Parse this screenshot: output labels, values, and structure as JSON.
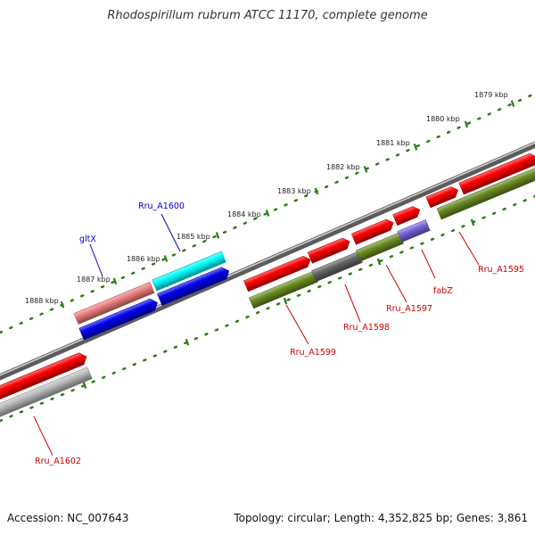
{
  "title": "Rhodospirillum rubrum ATCC 11170, complete genome",
  "footer": {
    "accession": "Accession: NC_007643",
    "summary": "Topology: circular; Length: 4,352,825 bp; Genes: 3,861"
  },
  "colors": {
    "background": "#ffffff",
    "backbone": "#7a7a7a",
    "tick": "#2a7d12",
    "label_red": "#cc0000",
    "label_blue": "#0000cc",
    "label_black": "#222222"
  },
  "scale_labels": [
    "1879 kbp",
    "1880 kbp",
    "1881 kbp",
    "1882 kbp",
    "1883 kbp",
    "1884 kbp",
    "1885 kbp",
    "1886 kbp",
    "1887 kbp",
    "1888 kbp"
  ],
  "features": [
    {
      "name": "red-forward-1",
      "color": "#ff0000"
    },
    {
      "name": "red-forward-2",
      "color": "#ff0000"
    },
    {
      "name": "red-forward-3",
      "color": "#ff0000"
    },
    {
      "name": "red-forward-4",
      "color": "#ff0000"
    },
    {
      "name": "red-forward-5",
      "color": "#ff0000"
    },
    {
      "name": "red-forward-6",
      "color": "#ff0000"
    },
    {
      "name": "red-forward-7",
      "color": "#ff0000"
    },
    {
      "name": "green-Rru_A1599",
      "color": "#6b8e23"
    },
    {
      "name": "gray-Rru_A1598",
      "color": "#666666"
    },
    {
      "name": "green-Rru_A1597",
      "color": "#6b8e23"
    },
    {
      "name": "purple-fabZ",
      "color": "#7766dd"
    },
    {
      "name": "green-Rru_A1595",
      "color": "#6b8e23"
    },
    {
      "name": "pink-gltX",
      "color": "#ee8080"
    },
    {
      "name": "cyan-Rru_A1600",
      "color": "#00ffff"
    },
    {
      "name": "blue-strand-1",
      "color": "#0000ee"
    },
    {
      "name": "blue-strand-2",
      "color": "#0000ee"
    },
    {
      "name": "red-Rru_A1602-pair",
      "color": "#ff0000"
    },
    {
      "name": "silver-Rru_A1602",
      "color": "#bbbbbb"
    }
  ],
  "labels": [
    {
      "name": "Rru_A1595",
      "text": "Rru_A1595",
      "color": "#cc0000"
    },
    {
      "name": "fabZ",
      "text": "fabZ",
      "color": "#cc0000"
    },
    {
      "name": "Rru_A1597",
      "text": "Rru_A1597",
      "color": "#cc0000"
    },
    {
      "name": "Rru_A1598",
      "text": "Rru_A1598",
      "color": "#cc0000"
    },
    {
      "name": "Rru_A1599",
      "text": "Rru_A1599",
      "color": "#cc0000"
    },
    {
      "name": "Rru_A1600",
      "text": "Rru_A1600",
      "color": "#0000cc"
    },
    {
      "name": "gltX",
      "text": "gltX",
      "color": "#0000cc"
    },
    {
      "name": "Rru_A1602",
      "text": "Rru_A1602",
      "color": "#cc0000"
    }
  ]
}
